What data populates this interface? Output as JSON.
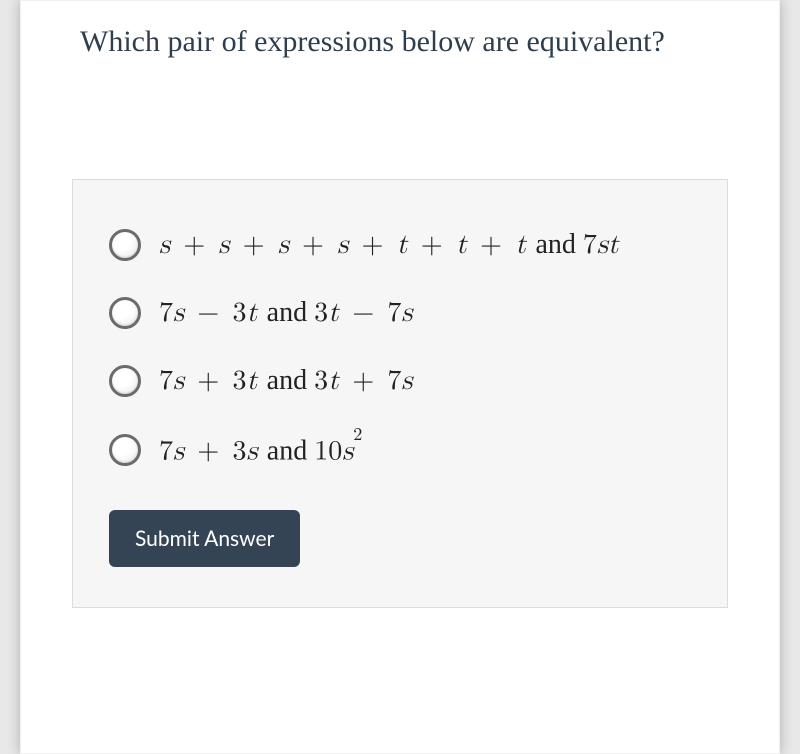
{
  "question": "Which pair of expressions below are equivalent?",
  "options": [
    {
      "html": "s <span class='op'>+</span> s <span class='op'>+</span> s <span class='op'>+</span> s <span class='op'>+</span> t <span class='op'>+</span> t <span class='op'>+</span> t <span class='word'> and </span><span class='num'>7</span>st"
    },
    {
      "html": "<span class='num'>7</span>s <span class='op'>&minus;</span> <span class='num'>3</span>t <span class='word'> and </span> <span class='num'>3</span>t <span class='op'>&minus;</span> <span class='num'>7</span>s"
    },
    {
      "html": "<span class='num'>7</span>s <span class='op'>+</span> <span class='num'>3</span>t <span class='word'> and </span> <span class='num'>3</span>t <span class='op'>+</span> <span class='num'>7</span>s"
    },
    {
      "html": "<span class='num'>7</span>s <span class='op'>+</span> <span class='num'>3</span>s <span class='word'> and </span> <span class='num'>10</span>s<sup>2</sup>"
    }
  ],
  "submit_label": "Submit Answer",
  "colors": {
    "text": "#2f3e4e",
    "box_bg": "#f6f6f6",
    "box_border": "#dcdcdc",
    "button_bg": "#354455",
    "button_text": "#ffffff",
    "radio_border": "#6b6b6b"
  }
}
